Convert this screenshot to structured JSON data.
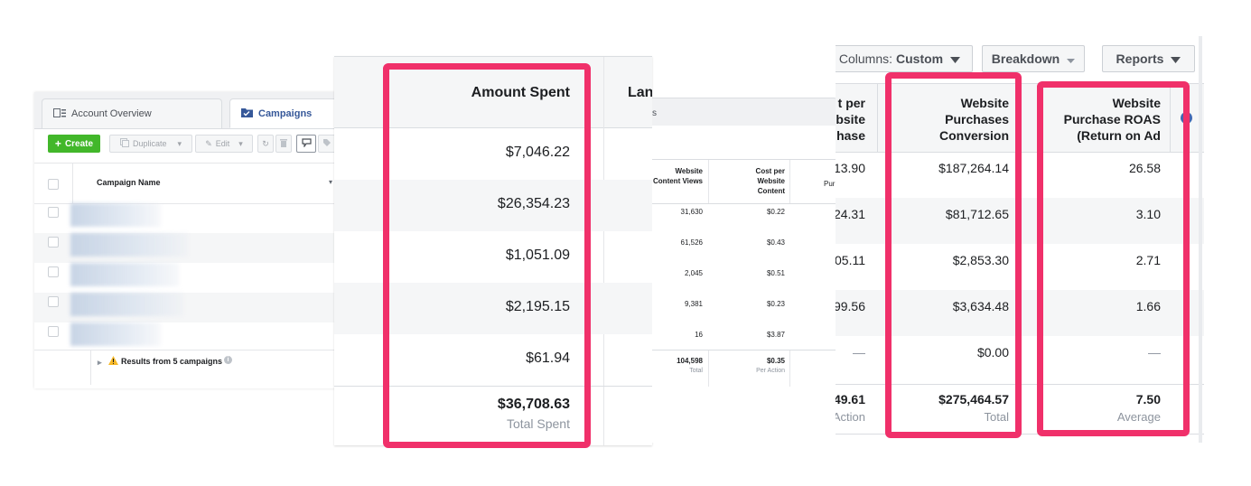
{
  "panel1": {
    "tabs": {
      "overview": "Account Overview",
      "campaigns": "Campaigns"
    },
    "toolbar": {
      "create": "Create",
      "duplicate": "Duplicate",
      "edit": "Edit"
    },
    "header": {
      "campaign_name": "Campaign Name"
    },
    "results": "Results from 5 campaigns"
  },
  "panel2": {
    "header": {
      "amount_spent": "Amount Spent",
      "next_col": "Lan"
    },
    "rows": [
      "$7,046.22",
      "$26,354.23",
      "$1,051.09",
      "$2,195.15",
      "$61.94"
    ],
    "total": "$36,708.63",
    "total_label": "Total Spent"
  },
  "panel3": {
    "header": {
      "website_content_views": "Website Content Views",
      "cost_per_content": "Cost per Website Content",
      "partial": "Pur"
    },
    "rows": [
      {
        "views": "31,630",
        "cost": "$0.22"
      },
      {
        "views": "61,526",
        "cost": "$0.43"
      },
      {
        "views": "2,045",
        "cost": "$0.51"
      },
      {
        "views": "9,381",
        "cost": "$0.23"
      },
      {
        "views": "16",
        "cost": "$3.87"
      }
    ],
    "totals": {
      "views": "104,598",
      "views_label": "Total",
      "cost": "$0.35",
      "cost_label": "Per Action"
    }
  },
  "panel4": {
    "toolbar": {
      "columns_label": "Columns:",
      "columns_value": "Custom",
      "breakdown": "Breakdown",
      "reports": "Reports"
    },
    "header": {
      "cost_per_line1": "t per",
      "cost_per_line2": "bsite",
      "cost_per_line3": "hase",
      "conv_line1": "Website",
      "conv_line2": "Purchases",
      "conv_line3": "Conversion",
      "roas_line1": "Website",
      "roas_line2": "Purchase ROAS",
      "roas_line3": "(Return on Ad"
    },
    "rows": [
      {
        "cost": "13.90",
        "conv": "$187,264.14",
        "roas": "26.58"
      },
      {
        "cost": "24.31",
        "conv": "$81,712.65",
        "roas": "3.10"
      },
      {
        "cost": "05.11",
        "conv": "$2,853.30",
        "roas": "2.71"
      },
      {
        "cost": "99.56",
        "conv": "$3,634.48",
        "roas": "1.66"
      },
      {
        "cost": "—",
        "conv": "$0.00",
        "roas": "—"
      }
    ],
    "totals": {
      "cost": "49.61",
      "cost_label": "Action",
      "conv": "$275,464.57",
      "conv_label": "Total",
      "roas": "7.50",
      "roas_label": "Average"
    }
  },
  "colors": {
    "highlight": "#f0306a",
    "create_green": "#42b72a",
    "link_blue": "#365899"
  }
}
